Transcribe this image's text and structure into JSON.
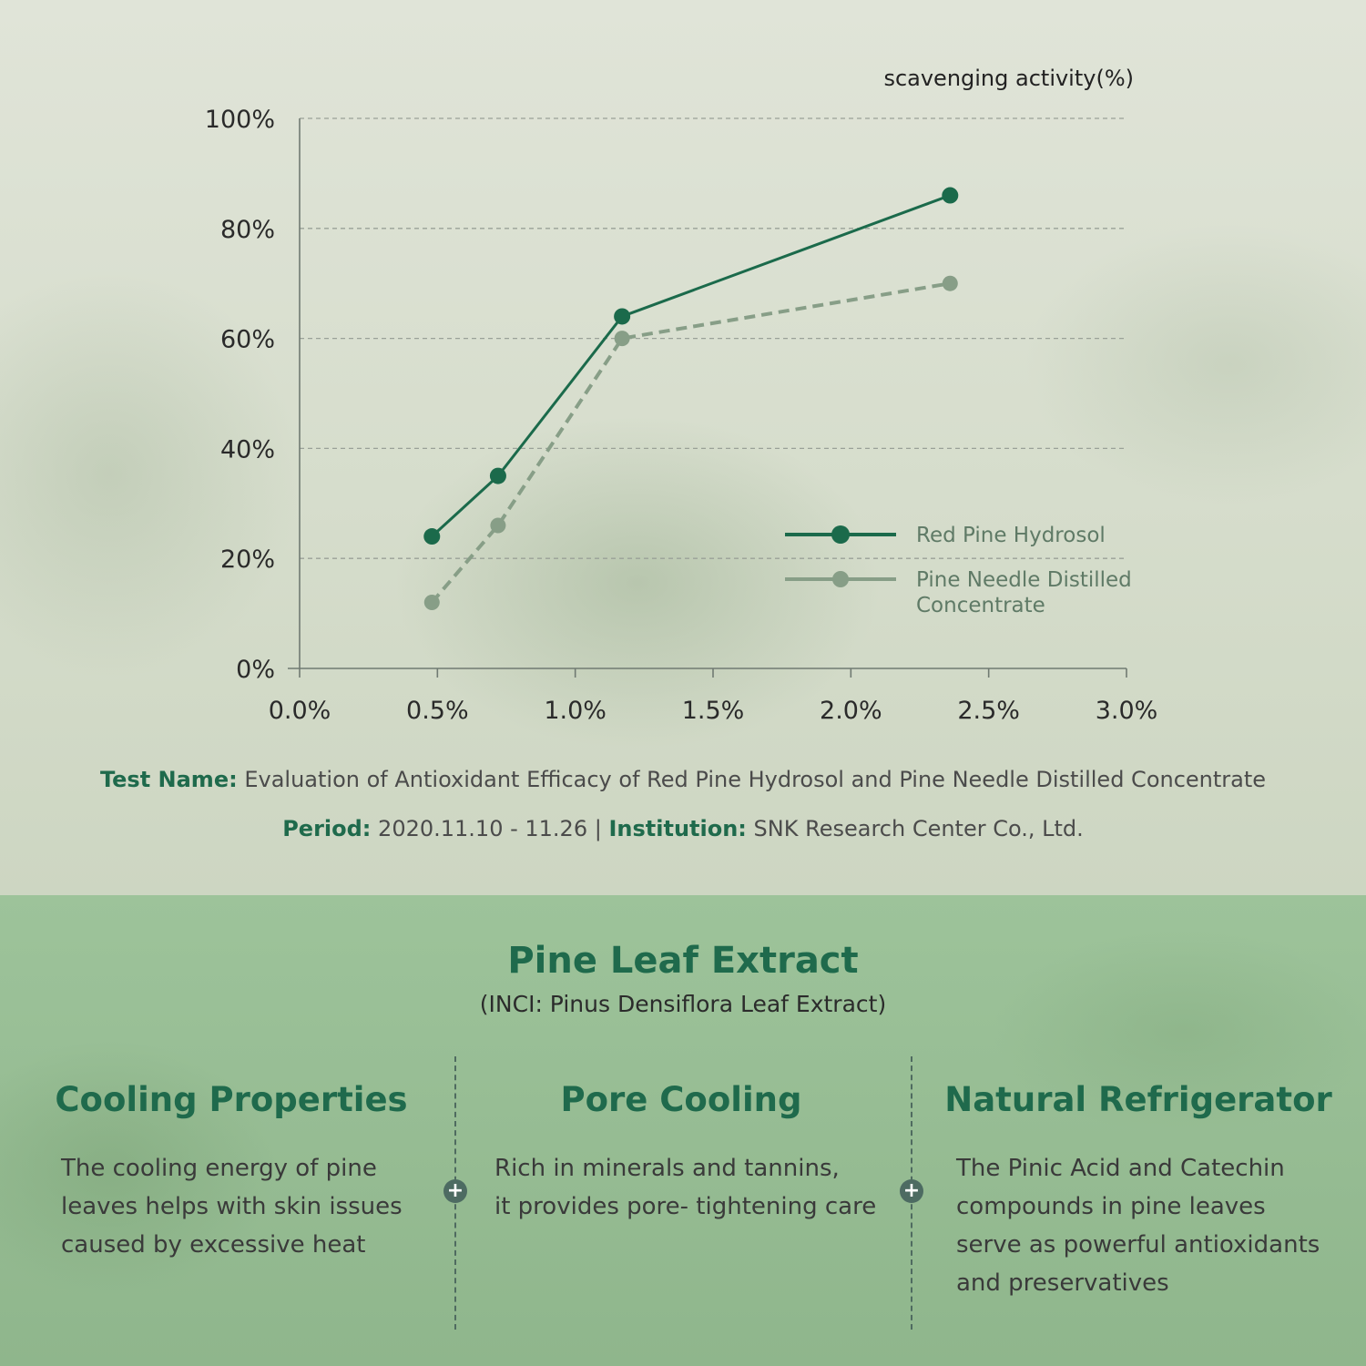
{
  "chart_data": {
    "type": "line",
    "ylabel": "scavenging activity(%)",
    "xlim": [
      0,
      3.0
    ],
    "ylim": [
      0,
      100
    ],
    "x_ticks": [
      "0.0%",
      "0.5%",
      "1.0%",
      "1.5%",
      "2.0%",
      "2.5%",
      "3.0%"
    ],
    "y_ticks": [
      "0%",
      "20%",
      "40%",
      "60%",
      "80%",
      "100%"
    ],
    "grid": "horizontal dashed",
    "legend_position": "right",
    "series": [
      {
        "name": "Red Pine Hydrosol",
        "color": "#1b6a4b",
        "style": "solid",
        "x": [
          0.48,
          0.72,
          1.17,
          2.36
        ],
        "y": [
          24,
          35,
          64,
          86
        ]
      },
      {
        "name": "Pine Needle Distilled Concentrate",
        "color": "#879e87",
        "style": "dashed",
        "x": [
          0.48,
          0.72,
          1.17,
          2.36
        ],
        "y": [
          12,
          26,
          60,
          70
        ]
      }
    ]
  },
  "caption": {
    "test_label": "Test Name:",
    "test_value": "Evaluation of Antioxidant Efficacy of Red Pine Hydrosol and Pine Needle Distilled Concentrate",
    "period_label": "Period:",
    "period_value": "2020.11.10 - 11.26",
    "separator": "|",
    "institution_label": "Institution:",
    "institution_value": "SNK Research Center Co., Ltd."
  },
  "extract": {
    "title": "Pine Leaf Extract",
    "inci": "(INCI: Pinus Densiflora Leaf Extract)"
  },
  "features": [
    {
      "title": "Cooling Properties",
      "lines": [
        "The cooling energy of pine",
        "leaves helps with skin issues",
        "caused by excessive heat"
      ]
    },
    {
      "title": "Pore Cooling",
      "lines": [
        "Rich in minerals and tannins,",
        "it provides pore- tightening care"
      ]
    },
    {
      "title": "Natural Refrigerator",
      "lines": [
        "The Pinic Acid and Catechin",
        "compounds in pine leaves",
        "serve as powerful antioxidants",
        "and preservatives"
      ]
    }
  ],
  "colors": {
    "brand_green": "#1f6a4c",
    "bottom_panel": "#97bd94"
  },
  "icons": [
    "plus-icon",
    "plus-icon"
  ]
}
